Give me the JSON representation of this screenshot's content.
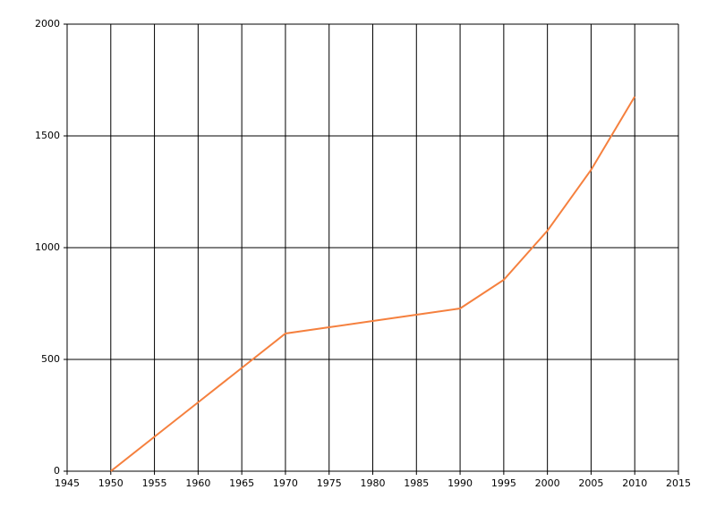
{
  "chart_data": {
    "type": "line",
    "x": [
      1950,
      1955,
      1960,
      1965,
      1970,
      1975,
      1980,
      1985,
      1990,
      1995,
      2000,
      2005,
      2010
    ],
    "values": [
      0,
      154,
      308,
      462,
      616,
      644,
      672,
      700,
      728,
      856,
      1076,
      1348,
      1676
    ],
    "color": "#f5803e",
    "xlim": [
      1945,
      2015
    ],
    "xticks": [
      1945,
      1950,
      1955,
      1960,
      1965,
      1970,
      1975,
      1980,
      1985,
      1990,
      1995,
      2000,
      2005,
      2010,
      2015
    ],
    "ylim": [
      0,
      2000
    ],
    "yticks": [
      0,
      500,
      1000,
      1500,
      2000
    ],
    "grid": true
  }
}
